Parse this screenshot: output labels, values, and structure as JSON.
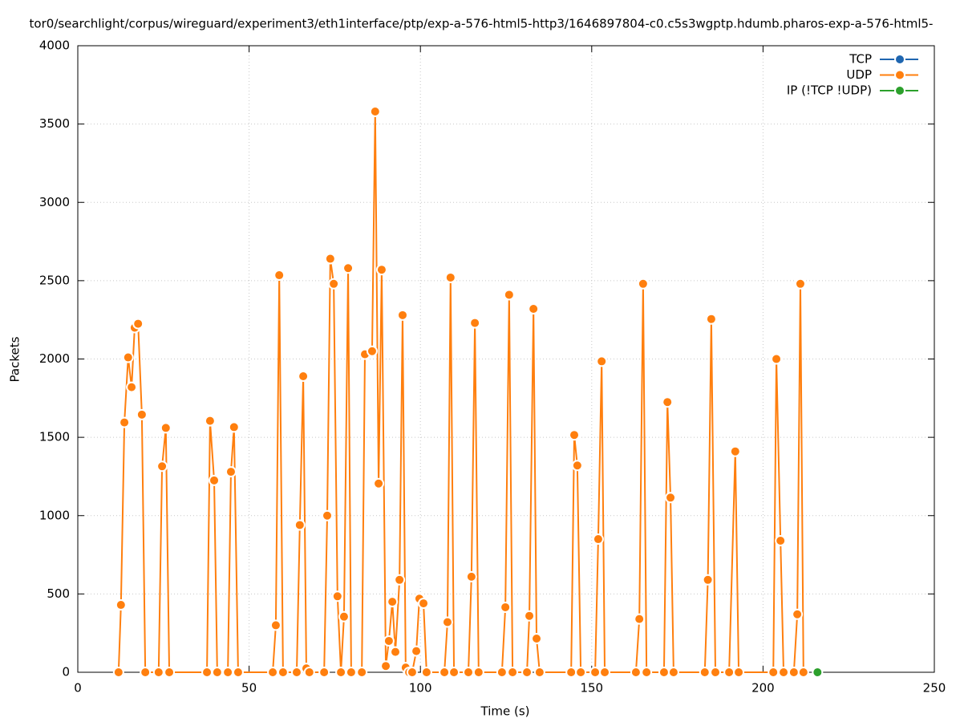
{
  "chart_data": {
    "type": "line",
    "title": "tor0/searchlight/corpus/wireguard/experiment3/eth1interface/ptp/exp-a-576-html5-http3/1646897804-c0.c5s3wgptp.hdumb.pharos-exp-a-576-html5-",
    "x_label": "Time (s)",
    "y_label": "Packets",
    "xlim": [
      0,
      250
    ],
    "xticks": [
      0,
      50,
      100,
      150,
      200,
      250
    ],
    "ylim": [
      0,
      4000
    ],
    "yticks": [
      0,
      500,
      1000,
      1500,
      2000,
      2500,
      3000,
      3500,
      4000
    ],
    "grid": true,
    "legend": "top-right",
    "series": [
      {
        "name": "TCP",
        "color": "#1f66b0",
        "x": [],
        "values": []
      },
      {
        "name": "UDP",
        "color": "#ff7f0e",
        "x": [
          11.9,
          12.6,
          13.6,
          14.7,
          15.7,
          16.6,
          17.6,
          18.7,
          19.7,
          23.6,
          24.6,
          25.7,
          26.7,
          37.7,
          38.6,
          39.8,
          40.7,
          43.8,
          44.7,
          45.6,
          46.8,
          56.9,
          57.8,
          58.8,
          59.9,
          63.9,
          64.8,
          65.8,
          66.7,
          67.6,
          71.9,
          72.8,
          73.7,
          74.7,
          75.8,
          76.8,
          77.7,
          78.9,
          79.8,
          82.9,
          83.8,
          85.9,
          86.8,
          87.8,
          88.7,
          89.9,
          90.8,
          91.8,
          92.7,
          93.9,
          94.8,
          95.7,
          96.7,
          97.6,
          98.8,
          99.7,
          100.9,
          101.8,
          107.0,
          107.9,
          108.8,
          109.8,
          114.0,
          114.9,
          115.9,
          117.0,
          123.8,
          124.8,
          125.9,
          126.9,
          131.1,
          131.8,
          133.0,
          133.9,
          134.8,
          144.0,
          144.9,
          145.8,
          146.8,
          151.0,
          151.9,
          152.9,
          153.8,
          162.9,
          163.9,
          165.0,
          166.0,
          171.1,
          172.1,
          173.0,
          173.9,
          183.0,
          183.9,
          184.9,
          186.1,
          190.1,
          191.9,
          192.9,
          203.0,
          203.9,
          205.1,
          206.0,
          209.0,
          210.0,
          210.9,
          211.8
        ],
        "values": [
          0,
          430,
          1595,
          2010,
          1820,
          2200,
          2225,
          1645,
          0,
          0,
          1315,
          1560,
          0,
          0,
          1605,
          1225,
          0,
          0,
          1280,
          1565,
          0,
          0,
          300,
          2535,
          0,
          0,
          940,
          1890,
          25,
          0,
          0,
          1000,
          2640,
          2480,
          485,
          0,
          355,
          2580,
          0,
          0,
          2030,
          2050,
          3580,
          1205,
          2570,
          40,
          200,
          450,
          130,
          590,
          2280,
          30,
          0,
          0,
          135,
          470,
          440,
          0,
          0,
          320,
          2520,
          0,
          0,
          610,
          2230,
          0,
          0,
          415,
          2410,
          0,
          0,
          360,
          2320,
          215,
          0,
          0,
          1515,
          1320,
          0,
          0,
          850,
          1985,
          0,
          0,
          340,
          2480,
          0,
          0,
          1725,
          1115,
          0,
          0,
          590,
          2255,
          0,
          0,
          1410,
          0,
          0,
          2000,
          840,
          0,
          0,
          370,
          2480,
          0
        ]
      },
      {
        "name": "IP (!TCP  !UDP)",
        "color": "#2ca02c",
        "x": [
          215.9
        ],
        "values": [
          0
        ]
      }
    ]
  }
}
